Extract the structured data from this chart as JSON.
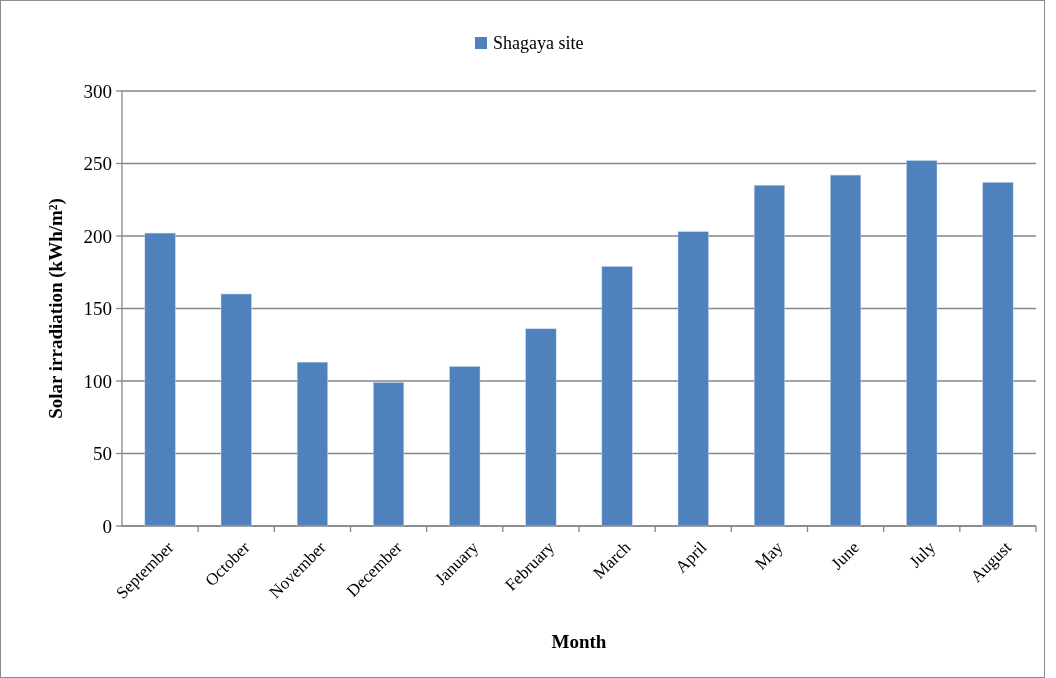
{
  "chart_data": {
    "type": "bar",
    "xlabel": "Month",
    "ylabel": "Solar irradiation (kWh/m²)",
    "categories": [
      "September",
      "October",
      "November",
      "December",
      "January",
      "February",
      "March",
      "April",
      "May",
      "June",
      "July",
      "August"
    ],
    "series": [
      {
        "name": "Shagaya site",
        "color": "#4f81bd",
        "values": [
          202,
          160,
          113,
          99,
          110,
          136,
          179,
          203,
          235,
          242,
          252,
          237
        ]
      }
    ],
    "ylim": [
      0,
      300
    ],
    "yticks": [
      0,
      50,
      100,
      150,
      200,
      250,
      300
    ],
    "grid": "y",
    "legend": "top"
  }
}
